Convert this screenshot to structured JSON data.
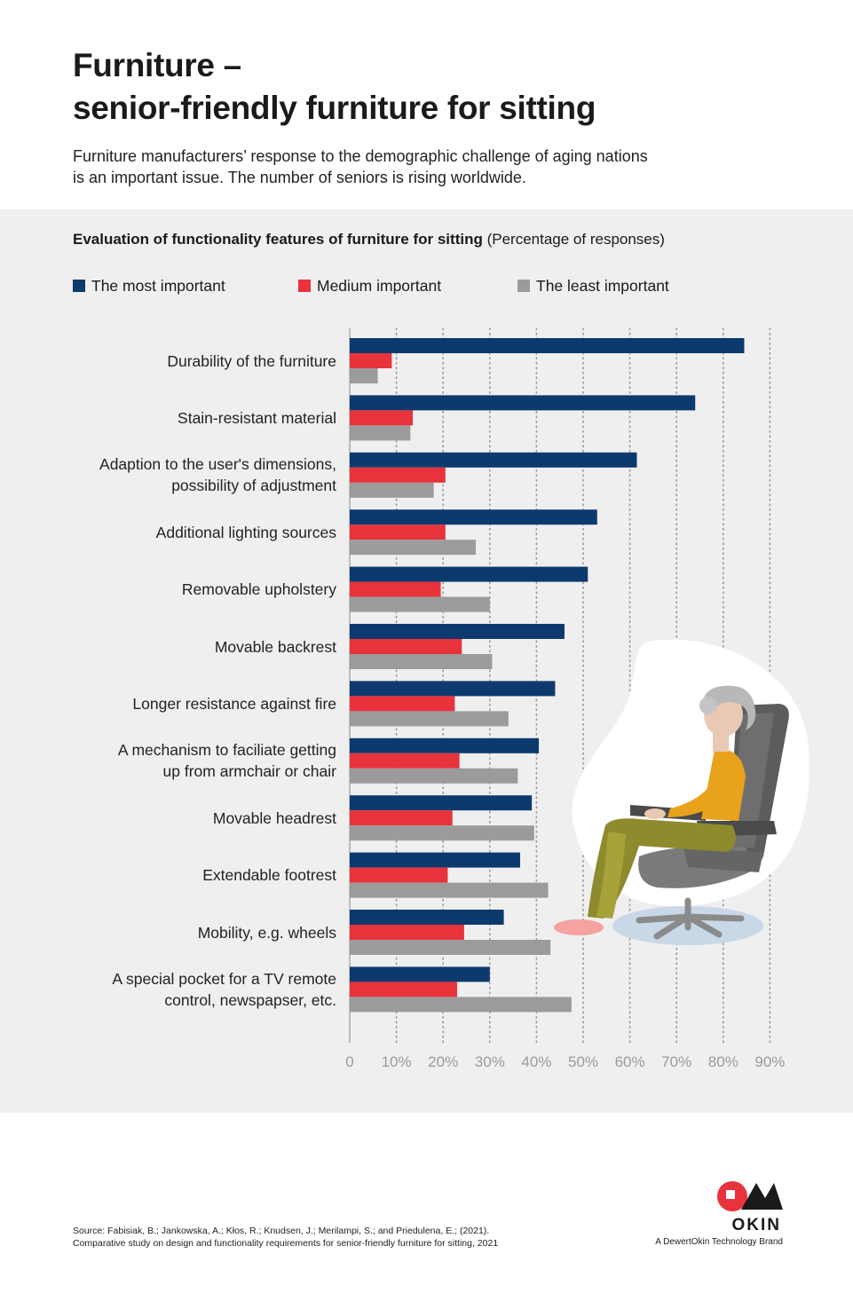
{
  "header": {
    "title_line1": "Furniture –",
    "title_line2": "senior-friendly furniture for sitting",
    "subtitle_line1": "Furniture manufacturers’ response to the demographic challenge of aging nations",
    "subtitle_line2": "is an important issue. The number of seniors is rising worldwide."
  },
  "colors": {
    "most": "#0d3a6e",
    "medium": "#e8323c",
    "least": "#9b9b9b",
    "panel": "#efefef"
  },
  "chart_data": {
    "type": "bar",
    "orientation": "horizontal",
    "title": "Evaluation of functionality features of furniture for sitting",
    "title_note": "(Percentage of responses)",
    "categories": [
      [
        "Durability of the furniture"
      ],
      [
        "Stain-resistant material"
      ],
      [
        "Adaption to the user's dimensions,",
        "possibility of adjustment"
      ],
      [
        "Additional lighting sources"
      ],
      [
        "Removable upholstery"
      ],
      [
        "Movable backrest"
      ],
      [
        "Longer resistance against fire"
      ],
      [
        "A mechanism to faciliate getting",
        "up from armchair or chair"
      ],
      [
        "Movable headrest"
      ],
      [
        "Extendable footrest"
      ],
      [
        "Mobility, e.g. wheels"
      ],
      [
        "A special pocket for a TV remote",
        "control, newspapser, etc."
      ]
    ],
    "series": [
      {
        "name": "The most important",
        "values": [
          84.5,
          74,
          61.5,
          53,
          51,
          46,
          44,
          40.5,
          39,
          36.5,
          33,
          30
        ]
      },
      {
        "name": "Medium important",
        "values": [
          9,
          13.5,
          20.5,
          20.5,
          19.5,
          24,
          22.5,
          23.5,
          22,
          21,
          24.5,
          23
        ]
      },
      {
        "name": "The least important",
        "values": [
          6,
          13,
          18,
          27,
          30,
          30.5,
          34,
          36,
          39.5,
          42.5,
          43,
          47.5
        ]
      }
    ],
    "xlim": [
      0,
      90
    ],
    "xticks": [
      "0",
      "10%",
      "20%",
      "30%",
      "40%",
      "50%",
      "60%",
      "70%",
      "80%",
      "90%"
    ],
    "grid": true,
    "legend_position": "top"
  },
  "footer": {
    "source_line1": "Source: Fabisiak, B.; Jankowska, A.; Kłos, R.; Knudsen, J.; Merilampi, S.; and Priedulena, E.; (2021).",
    "source_line2": "Comparative study on design and functionality requirements for senior-friendly furniture for sitting, 2021",
    "logo_name": "OKIN",
    "logo_tagline": "A DewertOkin Technology Brand"
  }
}
